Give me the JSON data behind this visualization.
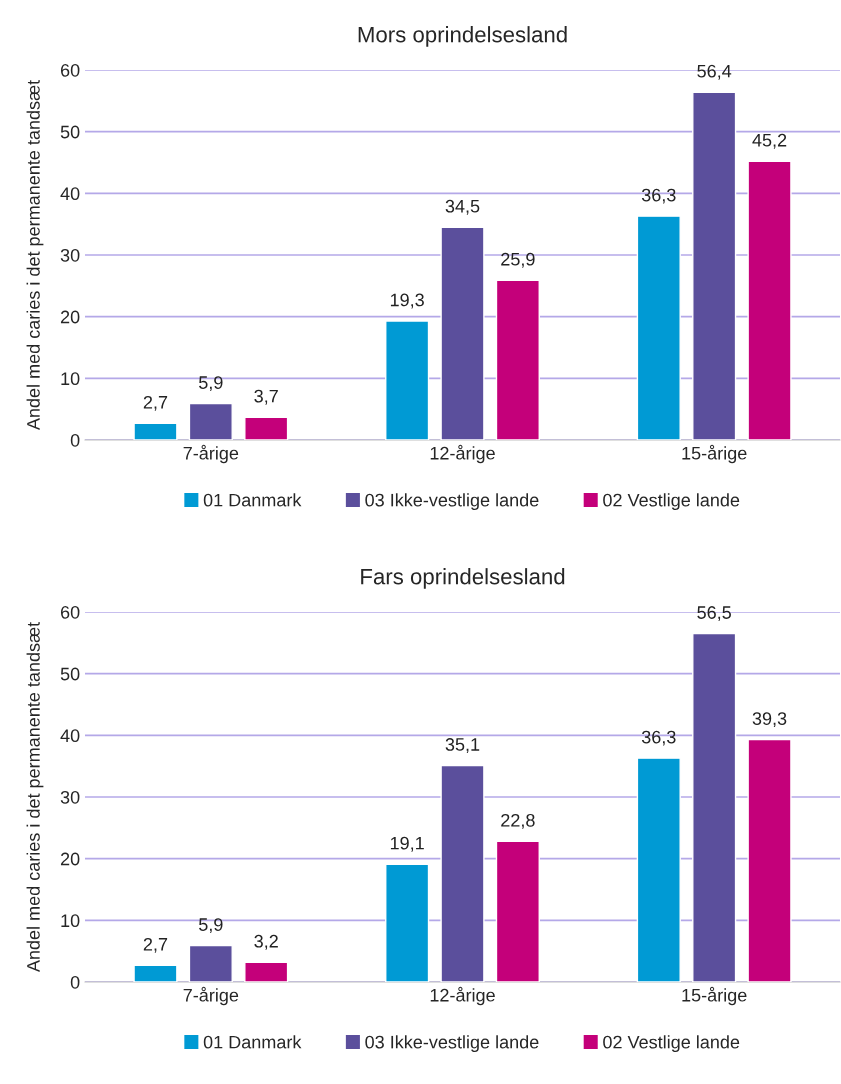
{
  "chart_data": [
    {
      "type": "bar",
      "title": "Mors oprindelsesland",
      "ylabel": "Andel med caries i det permanente tandsæt",
      "categories": [
        "7-årige",
        "12-årige",
        "15-årige"
      ],
      "ylim": [
        0,
        60
      ],
      "yticks": [
        0,
        10,
        20,
        30,
        40,
        50,
        60
      ],
      "grid": "y",
      "legend": "bottom",
      "series": [
        {
          "name": "01 Danmark",
          "color": "#009ad4",
          "values": [
            2.7,
            19.3,
            36.3
          ],
          "value_labels": [
            "2,7",
            "19,3",
            "36,3"
          ]
        },
        {
          "name": "03 Ikke-vestlige lande",
          "color": "#5b4f9c",
          "values": [
            5.9,
            34.5,
            56.4
          ],
          "value_labels": [
            "5,9",
            "34,5",
            "56,4"
          ]
        },
        {
          "name": "02 Vestlige lande",
          "color": "#c4007a",
          "values": [
            3.7,
            25.9,
            45.2
          ],
          "value_labels": [
            "3,7",
            "25,9",
            "45,2"
          ]
        }
      ]
    },
    {
      "type": "bar",
      "title": "Fars oprindelsesland",
      "ylabel": "Andel med caries i det permanente tandsæt",
      "categories": [
        "7-årige",
        "12-årige",
        "15-årige"
      ],
      "ylim": [
        0,
        60
      ],
      "yticks": [
        0,
        10,
        20,
        30,
        40,
        50,
        60
      ],
      "grid": "y",
      "legend": "bottom",
      "series": [
        {
          "name": "01 Danmark",
          "color": "#009ad4",
          "values": [
            2.7,
            19.1,
            36.3
          ],
          "value_labels": [
            "2,7",
            "19,1",
            "36,3"
          ]
        },
        {
          "name": "03 Ikke-vestlige lande",
          "color": "#5b4f9c",
          "values": [
            5.9,
            35.1,
            56.5
          ],
          "value_labels": [
            "5,9",
            "35,1",
            "56,5"
          ]
        },
        {
          "name": "02 Vestlige lande",
          "color": "#c4007a",
          "values": [
            3.2,
            22.8,
            39.3
          ],
          "value_labels": [
            "3,2",
            "22,8",
            "39,3"
          ]
        }
      ]
    }
  ]
}
